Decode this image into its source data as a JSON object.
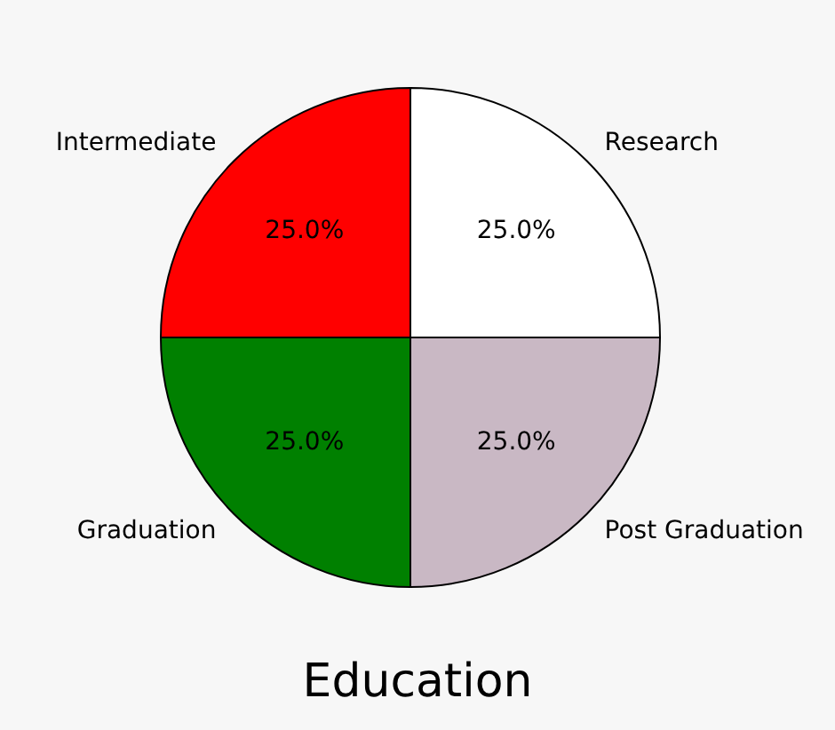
{
  "chart_data": {
    "type": "pie",
    "title": "Education",
    "categories": [
      "Research",
      "Post Graduation",
      "Graduation",
      "Intermediate"
    ],
    "values": [
      25,
      25,
      25,
      25
    ],
    "colors": [
      "#ffffff",
      "#c9b8c4",
      "#008000",
      "#ff0000"
    ],
    "value_labels": [
      "25.0%",
      "25.0%",
      "25.0%",
      "25.0%"
    ],
    "legend": false
  }
}
